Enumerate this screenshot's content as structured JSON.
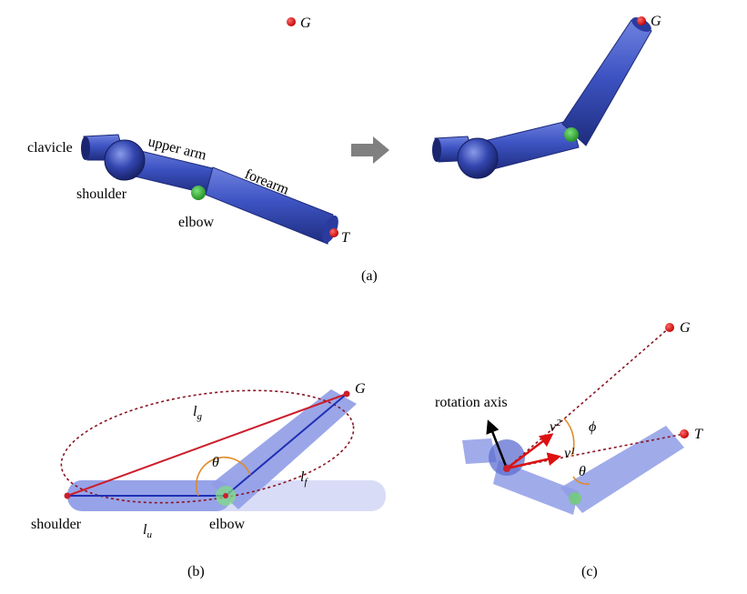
{
  "panel_a": {
    "goal_label": "G",
    "target_label": "T",
    "clavicle_label": "clavicle",
    "upper_arm_label": "upper arm",
    "forearm_label": "forearm",
    "shoulder_label": "shoulder",
    "elbow_label": "elbow",
    "goal_label_after": "G",
    "caption": "(a)"
  },
  "panel_b": {
    "goal_label": "G",
    "lg_label": "l",
    "lg_sub": "g",
    "theta_label": "θ",
    "lf_label": "l",
    "lf_sub": "f",
    "lu_label": "l",
    "lu_sub": "u",
    "shoulder_label": "shoulder",
    "elbow_label": "elbow",
    "caption": "(b)"
  },
  "panel_c": {
    "goal_label": "G",
    "target_label": "T",
    "rotation_axis_label": "rotation axis",
    "v2_label": "v",
    "v2_sub": "2",
    "v1_label": "v",
    "v1_sub": "1",
    "phi_label": "ϕ",
    "theta_label": "θ",
    "caption": "(c)"
  },
  "colors": {
    "arm_blue": "#3a4fc0",
    "arm_light": "#8f9ce6",
    "goal_red": "#dd1111",
    "elbow_green": "#2fae2f",
    "angle_orange": "#e08a2a",
    "dashed_red": "#8a1525",
    "arrow_gray": "#808080"
  }
}
